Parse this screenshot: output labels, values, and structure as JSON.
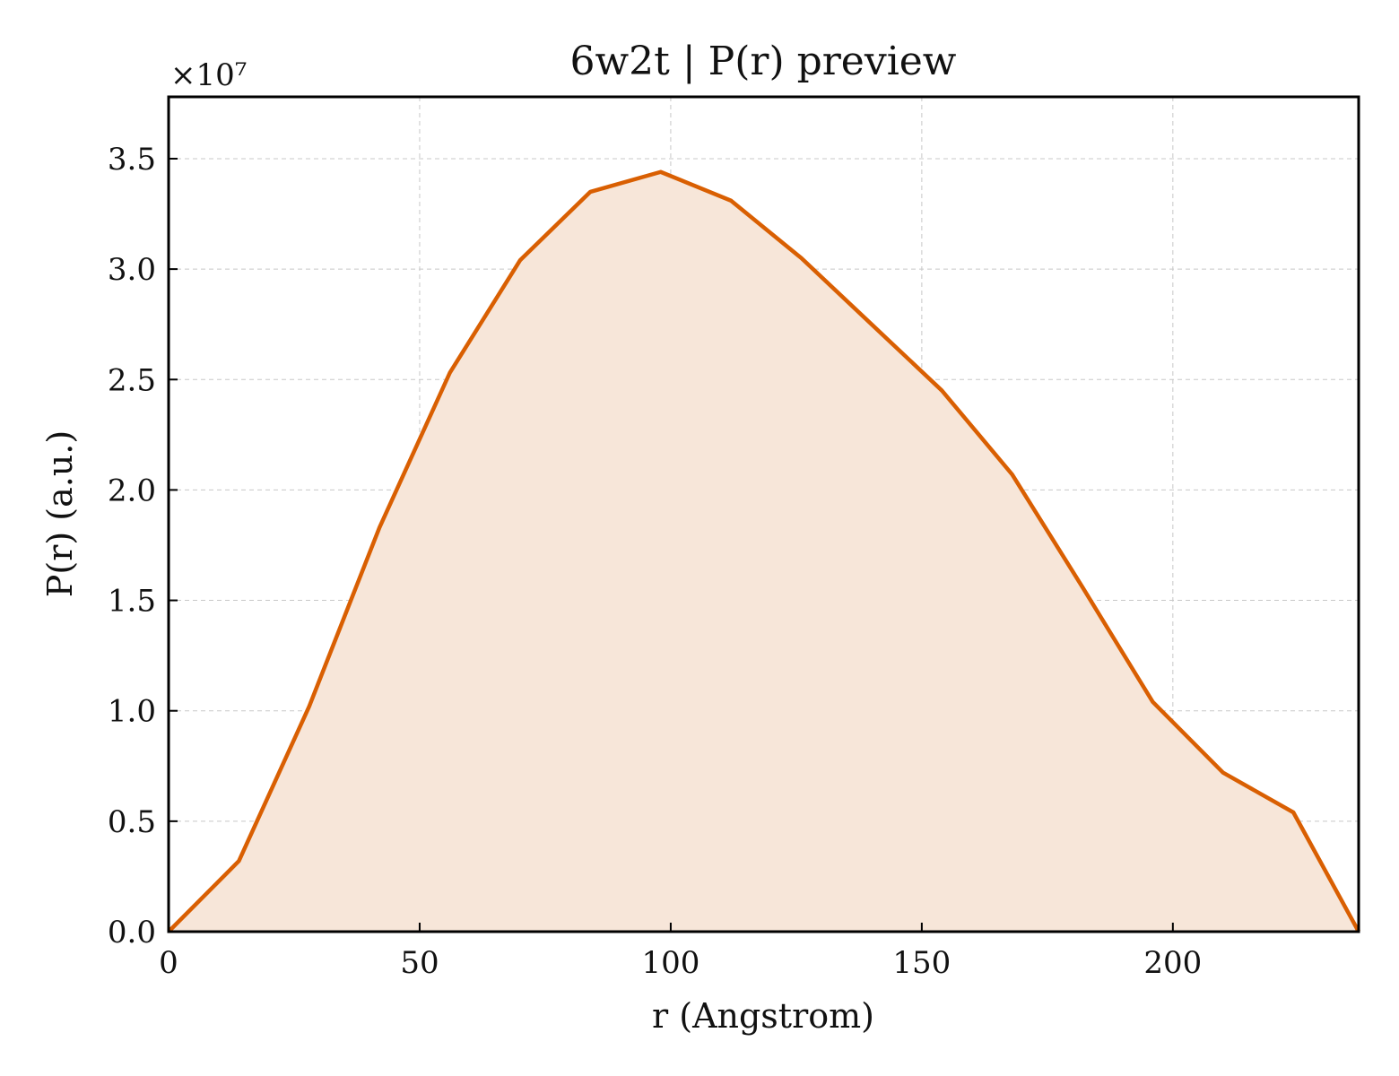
{
  "chart_data": {
    "type": "area",
    "title": "6w2t | P(r) preview",
    "xlabel": "r (Angstrom)",
    "ylabel": "P(r) (a.u.)",
    "y_offset_label": "×10⁷",
    "xlim": [
      0,
      237
    ],
    "ylim": [
      0,
      3.78
    ],
    "xticks": [
      0,
      50,
      100,
      150,
      200
    ],
    "xtick_labels": [
      "0",
      "50",
      "100",
      "150",
      "200"
    ],
    "yticks": [
      0.0,
      0.5,
      1.0,
      1.5,
      2.0,
      2.5,
      3.0,
      3.5
    ],
    "ytick_labels": [
      "0.0",
      "0.5",
      "1.0",
      "1.5",
      "2.0",
      "2.5",
      "3.0",
      "3.5"
    ],
    "grid": true,
    "series": [
      {
        "x": [
          0,
          14,
          28,
          42,
          56,
          70,
          84,
          98,
          112,
          126,
          140,
          154,
          168,
          182,
          196,
          210,
          224,
          237
        ],
        "y": [
          0.0,
          0.32,
          1.02,
          1.83,
          2.53,
          3.04,
          3.35,
          3.44,
          3.31,
          3.05,
          2.75,
          2.45,
          2.07,
          1.56,
          1.04,
          0.72,
          0.54,
          0.0
        ],
        "color": "#d95f02",
        "fill_color": "#f7e6d9"
      }
    ]
  }
}
